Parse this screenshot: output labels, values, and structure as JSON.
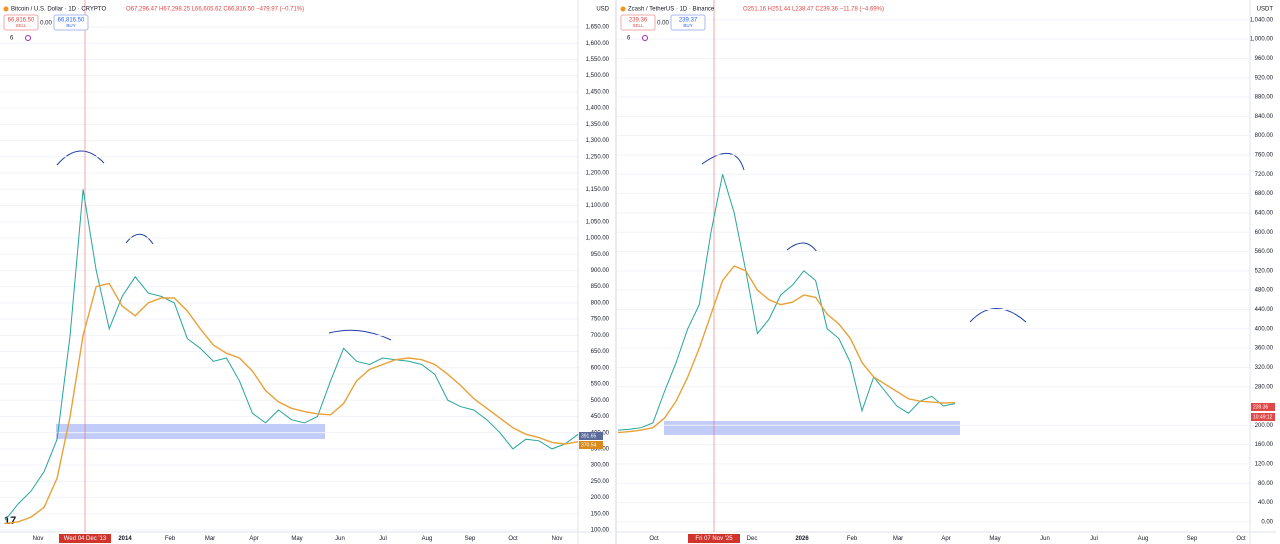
{
  "panes": [
    {
      "header": {
        "symbol": "Bitcoin / U.S. Dollar · 1D · CRYPTO",
        "ohlc": "O67,296.47 H67,298.25 L66,605.62 C66,816.50 −479.97 (−0.71%)",
        "sell_price": "66,816.50",
        "sell": "SELL",
        "spread": "0.00",
        "buy_price": "66,816.50",
        "buy": "BUY",
        "indicators": "6"
      },
      "currency": "USD",
      "ylim": [
        94,
        1690
      ],
      "yticks": [
        {
          "value": 100,
          "label": "100.00"
        },
        {
          "value": 150,
          "label": "150.00"
        },
        {
          "value": 200,
          "label": "200.00"
        },
        {
          "value": 250,
          "label": "250.00"
        },
        {
          "value": 300,
          "label": "300.00"
        },
        {
          "value": 350,
          "label": "350.00"
        },
        {
          "value": 400,
          "label": "400.00"
        },
        {
          "value": 450,
          "label": "450.00"
        },
        {
          "value": 500,
          "label": "500.00"
        },
        {
          "value": 550,
          "label": "550.00"
        },
        {
          "value": 600,
          "label": "600.00"
        },
        {
          "value": 650,
          "label": "650.00"
        },
        {
          "value": 700,
          "label": "700.00"
        },
        {
          "value": 750,
          "label": "750.00"
        },
        {
          "value": 800,
          "label": "800.00"
        },
        {
          "value": 850,
          "label": "850.00"
        },
        {
          "value": 900,
          "label": "900.00"
        },
        {
          "value": 950,
          "label": "950.00"
        },
        {
          "value": 1000,
          "label": "1,000.00"
        },
        {
          "value": 1050,
          "label": "1,050.00"
        },
        {
          "value": 1100,
          "label": "1,100.00"
        },
        {
          "value": 1150,
          "label": "1,150.00"
        },
        {
          "value": 1200,
          "label": "1,200.00"
        },
        {
          "value": 1250,
          "label": "1,250.00"
        },
        {
          "value": 1300,
          "label": "1,300.00"
        },
        {
          "value": 1350,
          "label": "1,350.00"
        },
        {
          "value": 1400,
          "label": "1,400.00"
        },
        {
          "value": 1450,
          "label": "1,450.00"
        },
        {
          "value": 1500,
          "label": "1,500.00"
        },
        {
          "value": 1550,
          "label": "1,550.00"
        },
        {
          "value": 1600,
          "label": "1,600.00"
        },
        {
          "value": 1650,
          "label": "1,650.00"
        }
      ],
      "xlabels": [
        "Nov",
        "2014",
        "Feb",
        "Mar",
        "Apr",
        "May",
        "Jun",
        "Jul",
        "Aug",
        "Sep",
        "Oct",
        "Nov"
      ],
      "crosshair": "Wed 04 Dec '13",
      "price_tags": [
        "391.65",
        "370.54"
      ],
      "price": [
        130,
        180,
        220,
        280,
        380,
        700,
        1150,
        900,
        720,
        820,
        880,
        830,
        820,
        800,
        690,
        660,
        620,
        630,
        560,
        460,
        430,
        470,
        440,
        430,
        450,
        560,
        660,
        620,
        610,
        630,
        625,
        620,
        610,
        580,
        500,
        480,
        470,
        440,
        400,
        350,
        380,
        375,
        350,
        365,
        395
      ],
      "ma": [
        120,
        125,
        140,
        170,
        260,
        450,
        700,
        850,
        860,
        790,
        760,
        800,
        815,
        815,
        775,
        720,
        670,
        645,
        630,
        590,
        530,
        495,
        475,
        465,
        458,
        455,
        490,
        560,
        595,
        610,
        625,
        630,
        625,
        610,
        580,
        545,
        505,
        475,
        445,
        415,
        395,
        385,
        370,
        365,
        372
      ]
    },
    {
      "header": {
        "symbol": "Zcash / TetherUS · 1D · Binance",
        "ohlc": "O251.16 H251.44 L238.47 C239.36 −11.78 (−4.69%)",
        "sell_price": "239.36",
        "sell": "SELL",
        "spread": "0.00",
        "buy_price": "239.37",
        "buy": "BUY",
        "indicators": "6"
      },
      "currency": "USDT",
      "ylim": [
        -21,
        1052
      ],
      "yticks": [
        {
          "value": 0,
          "label": "0.00"
        },
        {
          "value": 40,
          "label": "40.00"
        },
        {
          "value": 80,
          "label": "80.00"
        },
        {
          "value": 120,
          "label": "120.00"
        },
        {
          "value": 160,
          "label": "160.00"
        },
        {
          "value": 200,
          "label": "200.00"
        },
        {
          "value": 280,
          "label": "280.00"
        },
        {
          "value": 320,
          "label": "320.00"
        },
        {
          "value": 360,
          "label": "360.00"
        },
        {
          "value": 400,
          "label": "400.00"
        },
        {
          "value": 440,
          "label": "440.00"
        },
        {
          "value": 480,
          "label": "480.00"
        },
        {
          "value": 520,
          "label": "520.00"
        },
        {
          "value": 560,
          "label": "560.00"
        },
        {
          "value": 600,
          "label": "600.00"
        },
        {
          "value": 640,
          "label": "640.00"
        },
        {
          "value": 680,
          "label": "680.00"
        },
        {
          "value": 720,
          "label": "720.00"
        },
        {
          "value": 760,
          "label": "760.00"
        },
        {
          "value": 800,
          "label": "800.00"
        },
        {
          "value": 840,
          "label": "840.00"
        },
        {
          "value": 880,
          "label": "880.00"
        },
        {
          "value": 920,
          "label": "920.00"
        },
        {
          "value": 960,
          "label": "960.00"
        },
        {
          "value": 1000,
          "label": "1,000.00"
        },
        {
          "value": 1040,
          "label": "1,040.00"
        }
      ],
      "xlabels": [
        "Oct",
        "Dec",
        "2026",
        "Feb",
        "Mar",
        "Apr",
        "May",
        "Jun",
        "Jul",
        "Aug",
        "Sep",
        "Oct"
      ],
      "crosshair": "Fri 07 Nov '25",
      "price_tags": [
        "ZECUSDT",
        "239.36",
        "10:49:12"
      ],
      "price": [
        190,
        192,
        195,
        205,
        270,
        330,
        400,
        450,
        600,
        720,
        640,
        520,
        390,
        420,
        470,
        490,
        520,
        500,
        400,
        380,
        330,
        230,
        300,
        270,
        240,
        225,
        250,
        260,
        240,
        245
      ],
      "ma": [
        185,
        187,
        190,
        195,
        215,
        250,
        300,
        360,
        430,
        500,
        530,
        520,
        480,
        460,
        450,
        455,
        470,
        465,
        430,
        410,
        380,
        330,
        300,
        285,
        270,
        255,
        250,
        248,
        246,
        247
      ]
    }
  ]
}
